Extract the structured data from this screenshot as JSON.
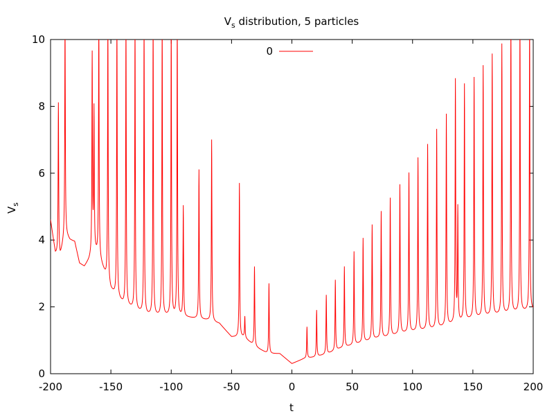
{
  "chart_data": {
    "type": "line",
    "title": "V",
    "title_subscript": "s",
    "title_rest": " distribution, 5 particles",
    "xlabel": "t",
    "ylabel": "V",
    "ylabel_subscript": "s",
    "xlim": [
      -200,
      200
    ],
    "ylim": [
      0,
      10
    ],
    "x_ticks": [
      -200,
      -150,
      -100,
      -50,
      0,
      50,
      100,
      150,
      200
    ],
    "y_ticks": [
      0,
      2,
      4,
      6,
      8,
      10
    ],
    "grid": false,
    "legend": {
      "placement": "top-center",
      "entries": [
        "0"
      ]
    },
    "line_color": "#ff0000",
    "series": [
      {
        "name": "0",
        "baseline_x": [
          -200,
          -196,
          -192,
          -188,
          -184,
          -180,
          -176,
          -172,
          -168,
          -164,
          -160,
          -150,
          -140,
          -130,
          -120,
          -110,
          -100,
          -90,
          -80,
          -70,
          -60,
          -50,
          -40,
          -30,
          -20,
          -10,
          0,
          10,
          20,
          30,
          40,
          50,
          60,
          70,
          80,
          90,
          100,
          110,
          120,
          130,
          140,
          150,
          160,
          170,
          180,
          190,
          200
        ],
        "baseline_y": [
          4.6,
          3.6,
          3.5,
          4.2,
          4.0,
          3.95,
          3.3,
          3.2,
          3.4,
          3.7,
          3.5,
          2.5,
          2.1,
          1.9,
          1.75,
          1.72,
          1.72,
          1.7,
          1.65,
          1.6,
          1.5,
          1.1,
          1.1,
          0.8,
          0.6,
          0.6,
          0.3,
          0.45,
          0.5,
          0.6,
          0.75,
          0.85,
          0.95,
          1.05,
          1.1,
          1.2,
          1.25,
          1.3,
          1.35,
          1.45,
          1.55,
          1.65,
          1.7,
          1.75,
          1.8,
          1.85,
          1.9
        ],
        "spikes": [
          {
            "t": -193.5,
            "v": 8.1
          },
          {
            "t": -188.0,
            "v": 10.5
          },
          {
            "t": -165.5,
            "v": 9.5
          },
          {
            "t": -164.0,
            "v": 7.85
          },
          {
            "t": -160.0,
            "v": 10.5
          },
          {
            "t": -152.5,
            "v": 10.5
          },
          {
            "t": -145.0,
            "v": 10.5
          },
          {
            "t": -137.5,
            "v": 10.5
          },
          {
            "t": -130.0,
            "v": 10.5
          },
          {
            "t": -122.5,
            "v": 10.5
          },
          {
            "t": -115.0,
            "v": 10.5
          },
          {
            "t": -107.5,
            "v": 10.5
          },
          {
            "t": -100.0,
            "v": 10.5
          },
          {
            "t": -95.0,
            "v": 10.5
          },
          {
            "t": -90.0,
            "v": 5.0
          },
          {
            "t": -77.0,
            "v": 6.1
          },
          {
            "t": -66.5,
            "v": 7.0
          },
          {
            "t": -43.5,
            "v": 5.7
          },
          {
            "t": -39.0,
            "v": 1.7
          },
          {
            "t": -31.0,
            "v": 3.2
          },
          {
            "t": -19.0,
            "v": 2.7
          },
          {
            "t": 12.5,
            "v": 1.4
          },
          {
            "t": 20.5,
            "v": 1.9
          },
          {
            "t": 28.5,
            "v": 2.35
          },
          {
            "t": 36.0,
            "v": 2.8
          },
          {
            "t": 43.5,
            "v": 3.2
          },
          {
            "t": 51.5,
            "v": 3.65
          },
          {
            "t": 59.0,
            "v": 4.05
          },
          {
            "t": 66.5,
            "v": 4.45
          },
          {
            "t": 74.0,
            "v": 4.85
          },
          {
            "t": 81.5,
            "v": 5.25
          },
          {
            "t": 89.5,
            "v": 5.65
          },
          {
            "t": 97.0,
            "v": 6.0
          },
          {
            "t": 104.5,
            "v": 6.45
          },
          {
            "t": 112.5,
            "v": 6.85
          },
          {
            "t": 120.0,
            "v": 7.3
          },
          {
            "t": 128.0,
            "v": 7.75
          },
          {
            "t": 135.5,
            "v": 8.75
          },
          {
            "t": 137.5,
            "v": 4.9
          },
          {
            "t": 143.0,
            "v": 8.65
          },
          {
            "t": 151.0,
            "v": 8.85
          },
          {
            "t": 158.5,
            "v": 9.2
          },
          {
            "t": 166.0,
            "v": 9.55
          },
          {
            "t": 174.0,
            "v": 9.85
          },
          {
            "t": 181.5,
            "v": 10.5
          },
          {
            "t": 189.0,
            "v": 10.5
          },
          {
            "t": 197.0,
            "v": 10.5
          }
        ]
      }
    ]
  }
}
